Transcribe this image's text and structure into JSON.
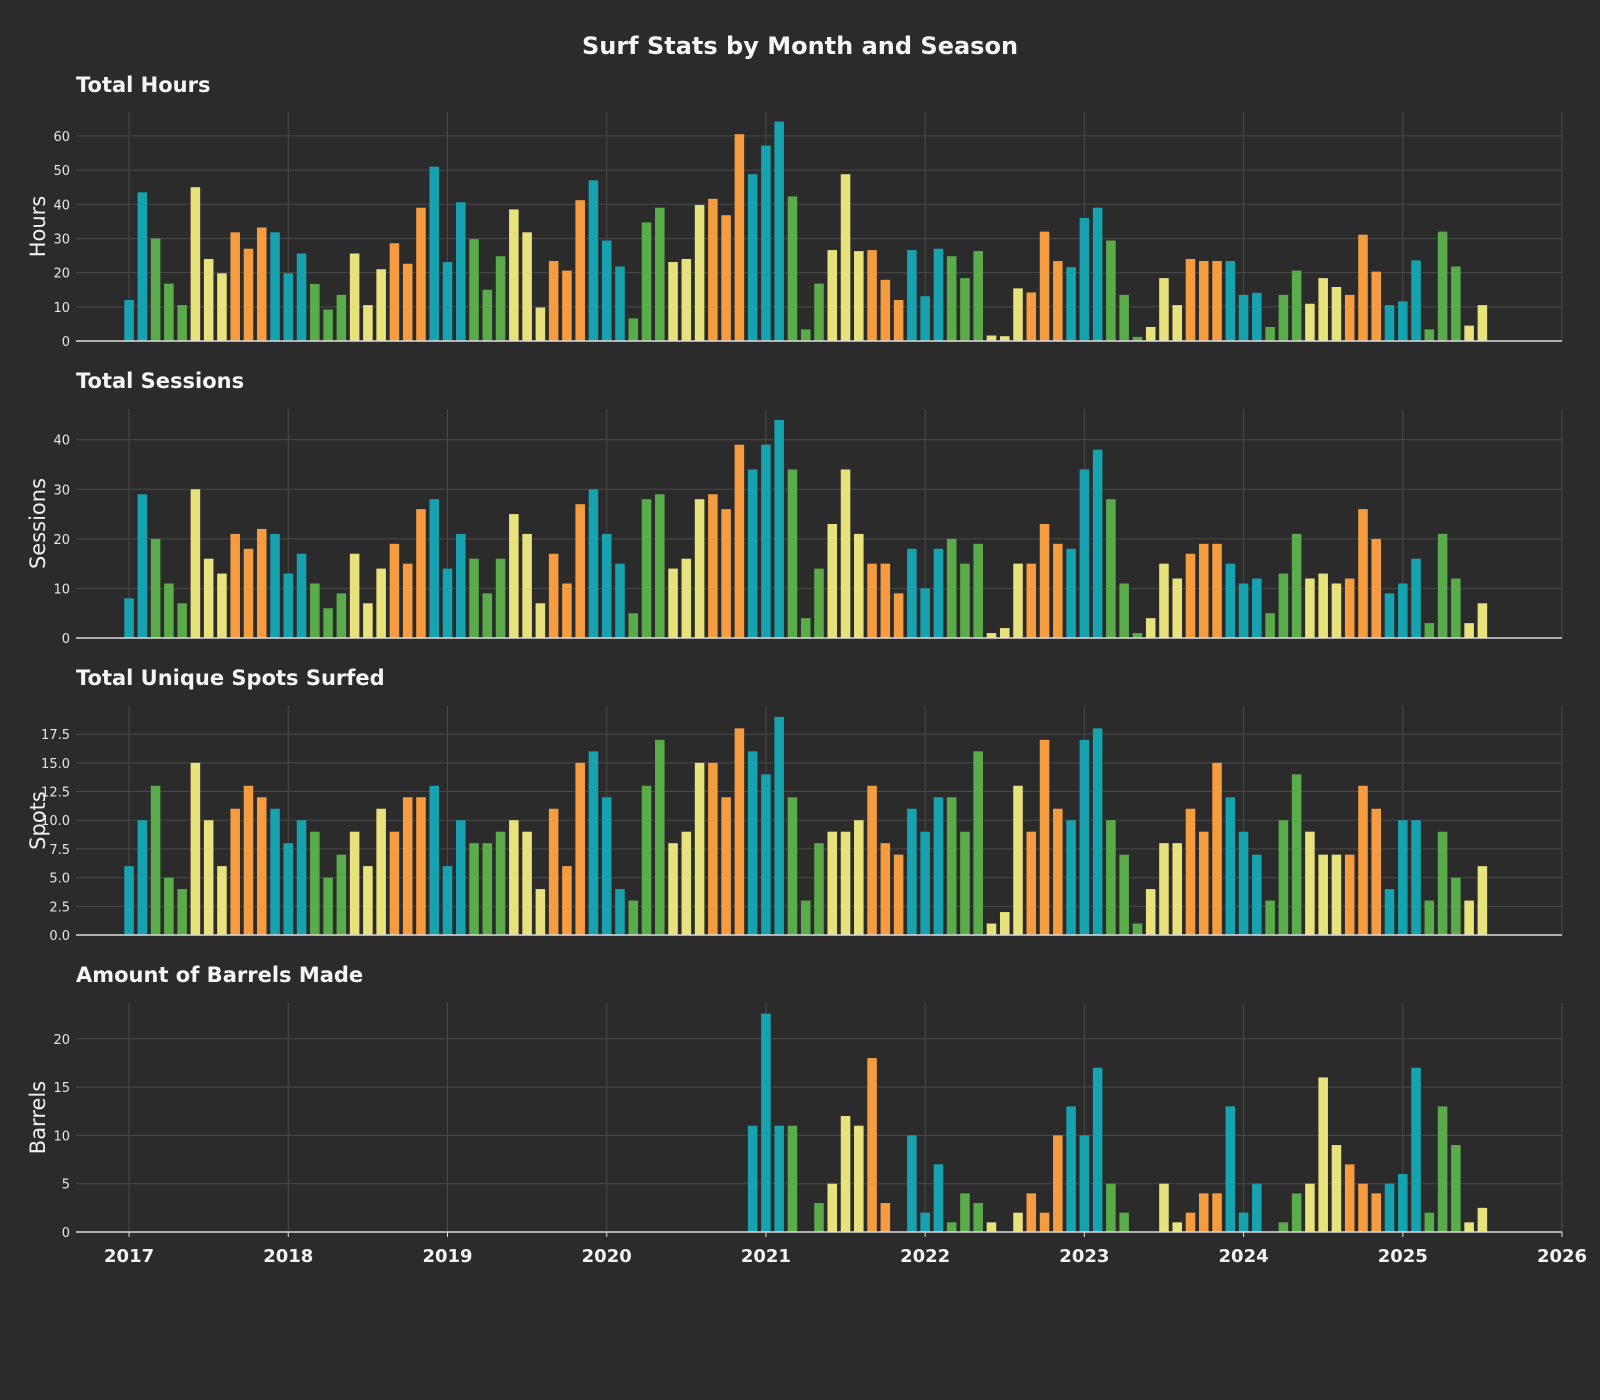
{
  "title": "Surf Stats by Month and Season",
  "colors": {
    "background": "#2b2b2b",
    "grid": "#4a4a4a",
    "axis": "#dddddd",
    "winter": "#17a2b0",
    "spring": "#5aab4a",
    "summer": "#e8e27c",
    "autumn": "#f59c40"
  },
  "x_ticks": [
    "2017",
    "2018",
    "2019",
    "2020",
    "2021",
    "2022",
    "2023",
    "2024",
    "2025",
    "2026"
  ],
  "chart_data": {
    "type": "bar",
    "x_unit": "month",
    "x_start": "2017-01",
    "x_end": "2025-08",
    "x_range": [
      "2016-09",
      "2026-01"
    ],
    "season_by_month": [
      "winter",
      "winter",
      "spring",
      "spring",
      "spring",
      "summer",
      "summer",
      "summer",
      "autumn",
      "autumn",
      "autumn",
      "winter"
    ],
    "grid": true,
    "panels": [
      {
        "title": "Total Hours",
        "ylabel": "Hours",
        "ylim": [
          0,
          67
        ],
        "yticks": [
          0,
          10,
          20,
          30,
          40,
          50,
          60
        ],
        "values": [
          12,
          43.5,
          30,
          16.8,
          10.5,
          45,
          24,
          19.8,
          31.8,
          27,
          33.2,
          31.8,
          19.8,
          25.6,
          16.7,
          9.2,
          13.5,
          25.6,
          10.5,
          21,
          28.6,
          22.6,
          39,
          51,
          23.1,
          40.6,
          29.8,
          15,
          24.8,
          38.5,
          31.8,
          9.8,
          23.4,
          20.6,
          41.2,
          47,
          29.4,
          21.8,
          6.6,
          34.7,
          39,
          23.1,
          24,
          39.8,
          41.6,
          36.8,
          60.5,
          48.8,
          57.2,
          64.2,
          42.3,
          3.4,
          16.8,
          26.6,
          48.8,
          26.3,
          26.6,
          17.9,
          12,
          26.6,
          13.1,
          27,
          24.8,
          18.4,
          26.3,
          1.6,
          1.4,
          15.4,
          14.2,
          32,
          23.4,
          21.6,
          36,
          39,
          29.4,
          13.5,
          1.2,
          4.1,
          18.4,
          10.5,
          24,
          23.4,
          23.4,
          23.4,
          13.5,
          14.1,
          4.1,
          13.5,
          20.6,
          10.9,
          18.4,
          15.8,
          13.5,
          31.1,
          20.3,
          10.5,
          11.6,
          23.6,
          3.4,
          32,
          21.8,
          4.5,
          10.5
        ]
      },
      {
        "title": "Total Sessions",
        "ylabel": "Sessions",
        "ylim": [
          0,
          46.2
        ],
        "yticks": [
          0,
          10,
          20,
          30,
          40
        ],
        "values": [
          8,
          29,
          20,
          11,
          7,
          30,
          16,
          13,
          21,
          18,
          22,
          21,
          13,
          17,
          11,
          6,
          9,
          17,
          7,
          14,
          19,
          15,
          26,
          28,
          14,
          21,
          16,
          9,
          16,
          25,
          21,
          7,
          17,
          11,
          27,
          30,
          21,
          15,
          5,
          28,
          29,
          14,
          16,
          28,
          29,
          26,
          39,
          34,
          39,
          44,
          34,
          4,
          14,
          23,
          34,
          21,
          15,
          15,
          9,
          18,
          10,
          18,
          20,
          15,
          19,
          1,
          2,
          15,
          15,
          23,
          19,
          18,
          34,
          38,
          28,
          11,
          1,
          4,
          15,
          12,
          17,
          19,
          19,
          15,
          11,
          12,
          5,
          13,
          21,
          12,
          13,
          11,
          12,
          26,
          20,
          9,
          11,
          16,
          3,
          21,
          12,
          3,
          7
        ]
      },
      {
        "title": "Total Unique Spots Surfed",
        "ylabel": "Spots",
        "ylim": [
          0,
          19.95
        ],
        "yticks": [
          "0.0",
          "2.5",
          "5.0",
          "7.5",
          "10.0",
          "12.5",
          "15.0",
          "17.5"
        ],
        "values": [
          6,
          10,
          13,
          5,
          4,
          15,
          10,
          6,
          11,
          13,
          12,
          11,
          8,
          10,
          9,
          5,
          7,
          9,
          6,
          11,
          9,
          12,
          12,
          13,
          6,
          10,
          8,
          8,
          9,
          10,
          9,
          4,
          11,
          6,
          15,
          16,
          12,
          4,
          3,
          13,
          17,
          8,
          9,
          15,
          15,
          12,
          18,
          16,
          14,
          19,
          12,
          3,
          8,
          9,
          9,
          10,
          13,
          8,
          7,
          11,
          9,
          12,
          12,
          9,
          16,
          1,
          2,
          13,
          9,
          17,
          11,
          10,
          17,
          18,
          10,
          7,
          1,
          4,
          8,
          8,
          11,
          9,
          15,
          12,
          9,
          7,
          3,
          10,
          14,
          9,
          7,
          7,
          7,
          13,
          11,
          4,
          10,
          10,
          3,
          9,
          5,
          3,
          6
        ]
      },
      {
        "title": "Amount of Barrels Made",
        "ylabel": "Barrels",
        "ylim": [
          0,
          23.7
        ],
        "yticks": [
          0,
          5,
          10,
          15,
          20
        ],
        "values": [
          0,
          0,
          0,
          0,
          0,
          0,
          0,
          0,
          0,
          0,
          0,
          0,
          0,
          0,
          0,
          0,
          0,
          0,
          0,
          0,
          0,
          0,
          0,
          0,
          0,
          0,
          0,
          0,
          0,
          0,
          0,
          0,
          0,
          0,
          0,
          0,
          0,
          0,
          0,
          0,
          0,
          0,
          0,
          0,
          0,
          0,
          0,
          11,
          22.6,
          11,
          11,
          0,
          3,
          5,
          12,
          11,
          18,
          3,
          0,
          10,
          2,
          7,
          1,
          4,
          3,
          1,
          0,
          2,
          4,
          2,
          10,
          13,
          10,
          17,
          5,
          2,
          0,
          0,
          5,
          1,
          2,
          4,
          4,
          13,
          2,
          5,
          0,
          1,
          4,
          5,
          16,
          9,
          7,
          5,
          4,
          5,
          6,
          17,
          2,
          13,
          9,
          1,
          2.5
        ]
      }
    ]
  }
}
